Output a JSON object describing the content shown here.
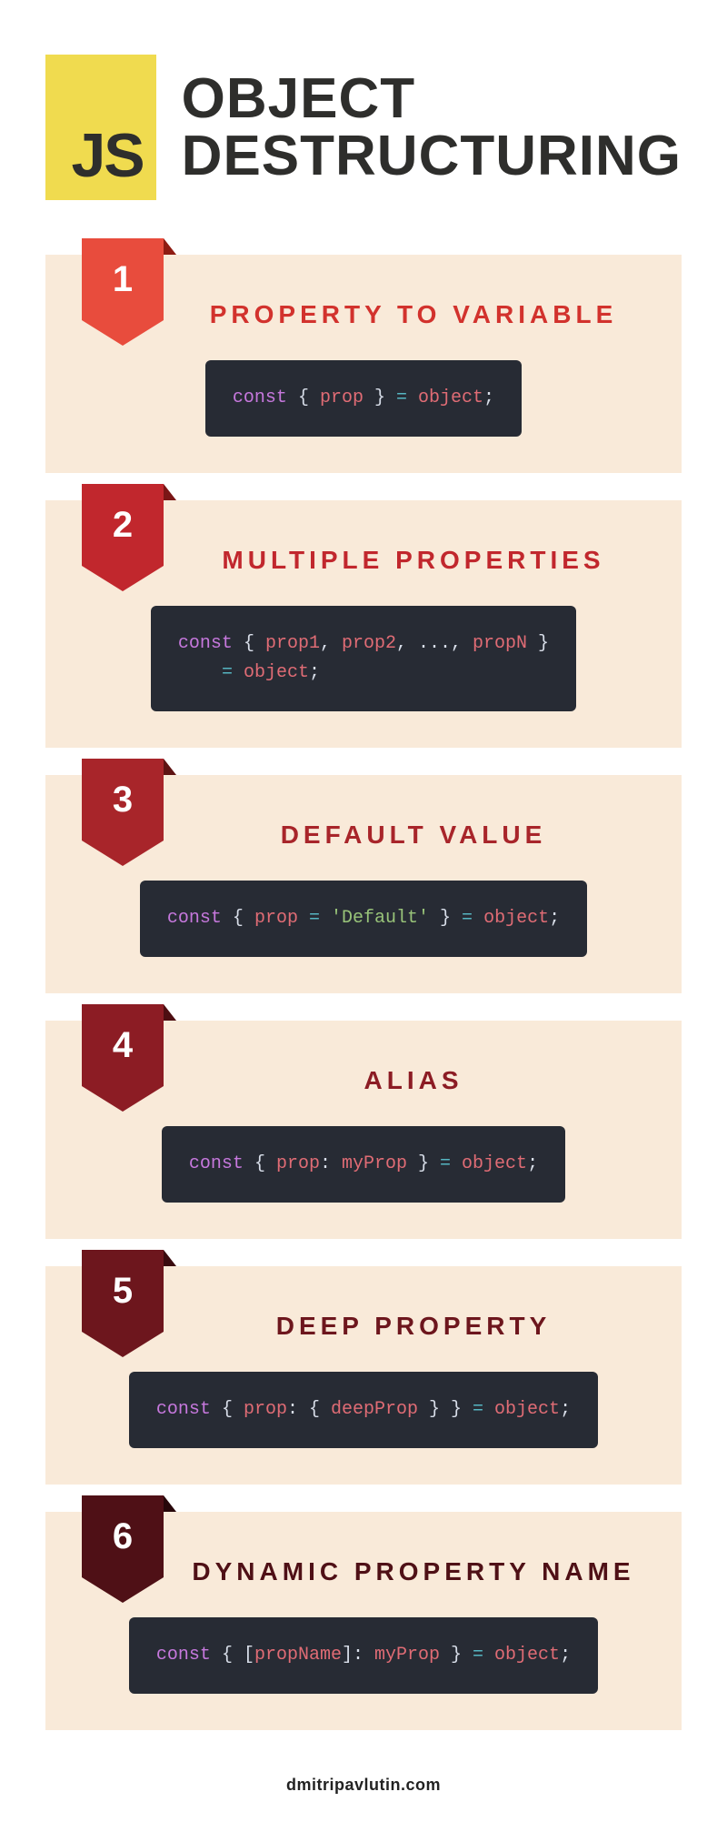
{
  "header": {
    "badge_text": "JS",
    "badge_bg": "#f0db4f",
    "badge_fg": "#2e2e2c",
    "title_line1": "OBJECT",
    "title_line2": "DESTRUCTURING",
    "title_color": "#2e2e2c"
  },
  "code_style": {
    "bg": "#272b34",
    "kw": "#c678dd",
    "punc": "#d8dee9",
    "ident": "#e06c75",
    "op": "#56b6c2",
    "str": "#98c379",
    "num": "#d19a66"
  },
  "sections": [
    {
      "num": "1",
      "title": "PROPERTY TO VARIABLE",
      "bg": "#f9ead9",
      "title_color": "#d2322d",
      "ribbon_color": "#e84c3d",
      "fold_color": "#8e1b12",
      "tokens": [
        [
          "kw",
          "const"
        ],
        [
          "sp",
          " "
        ],
        [
          "punc",
          "{ "
        ],
        [
          "ident",
          "prop"
        ],
        [
          "punc",
          " } "
        ],
        [
          "op",
          "="
        ],
        [
          "sp",
          " "
        ],
        [
          "ident",
          "object"
        ],
        [
          "punc",
          ";"
        ]
      ]
    },
    {
      "num": "2",
      "title": "MULTIPLE PROPERTIES",
      "bg": "#f9ead9",
      "title_color": "#c1272d",
      "ribbon_color": "#c1272d",
      "fold_color": "#7a1616",
      "tokens": [
        [
          "kw",
          "const"
        ],
        [
          "sp",
          " "
        ],
        [
          "punc",
          "{ "
        ],
        [
          "ident",
          "prop1"
        ],
        [
          "punc",
          ", "
        ],
        [
          "ident",
          "prop2"
        ],
        [
          "punc",
          ", ..., "
        ],
        [
          "ident",
          "propN"
        ],
        [
          "punc",
          " }"
        ],
        [
          "br",
          ""
        ],
        [
          "sp",
          "    "
        ],
        [
          "op",
          "="
        ],
        [
          "sp",
          " "
        ],
        [
          "ident",
          "object"
        ],
        [
          "punc",
          ";"
        ]
      ]
    },
    {
      "num": "3",
      "title": "DEFAULT VALUE",
      "bg": "#f9ead9",
      "title_color": "#a8252a",
      "ribbon_color": "#a8252a",
      "fold_color": "#5e1313",
      "tokens": [
        [
          "kw",
          "const"
        ],
        [
          "sp",
          " "
        ],
        [
          "punc",
          "{ "
        ],
        [
          "ident",
          "prop"
        ],
        [
          "sp",
          " "
        ],
        [
          "op",
          "="
        ],
        [
          "sp",
          " "
        ],
        [
          "str",
          "'Default'"
        ],
        [
          "punc",
          " } "
        ],
        [
          "op",
          "="
        ],
        [
          "sp",
          " "
        ],
        [
          "ident",
          "object"
        ],
        [
          "punc",
          ";"
        ]
      ]
    },
    {
      "num": "4",
      "title": "ALIAS",
      "bg": "#f9ead9",
      "title_color": "#8c1c24",
      "ribbon_color": "#8c1c24",
      "fold_color": "#4d0e12",
      "tokens": [
        [
          "kw",
          "const"
        ],
        [
          "sp",
          " "
        ],
        [
          "punc",
          "{ "
        ],
        [
          "ident",
          "prop"
        ],
        [
          "punc",
          ": "
        ],
        [
          "ident",
          "myProp"
        ],
        [
          "punc",
          " } "
        ],
        [
          "op",
          "="
        ],
        [
          "sp",
          " "
        ],
        [
          "ident",
          "object"
        ],
        [
          "punc",
          ";"
        ]
      ]
    },
    {
      "num": "5",
      "title": "DEEP PROPERTY",
      "bg": "#f9ead9",
      "title_color": "#6d161d",
      "ribbon_color": "#6d161d",
      "fold_color": "#3a0b0f",
      "tokens": [
        [
          "kw",
          "const"
        ],
        [
          "sp",
          " "
        ],
        [
          "punc",
          "{ "
        ],
        [
          "ident",
          "prop"
        ],
        [
          "punc",
          ": { "
        ],
        [
          "ident",
          "deepProp"
        ],
        [
          "punc",
          " } } "
        ],
        [
          "op",
          "="
        ],
        [
          "sp",
          " "
        ],
        [
          "ident",
          "object"
        ],
        [
          "punc",
          ";"
        ]
      ]
    },
    {
      "num": "6",
      "title": "DYNAMIC PROPERTY NAME",
      "bg": "#f9ead9",
      "title_color": "#4f1016",
      "ribbon_color": "#4f1016",
      "fold_color": "#27070a",
      "tokens": [
        [
          "kw",
          "const"
        ],
        [
          "sp",
          " "
        ],
        [
          "punc",
          "{ ["
        ],
        [
          "ident",
          "propName"
        ],
        [
          "punc",
          "]: "
        ],
        [
          "ident",
          "myProp"
        ],
        [
          "punc",
          " } "
        ],
        [
          "op",
          "="
        ],
        [
          "sp",
          " "
        ],
        [
          "ident",
          "object"
        ],
        [
          "punc",
          ";"
        ]
      ]
    }
  ],
  "footer": "dmitripavlutin.com"
}
